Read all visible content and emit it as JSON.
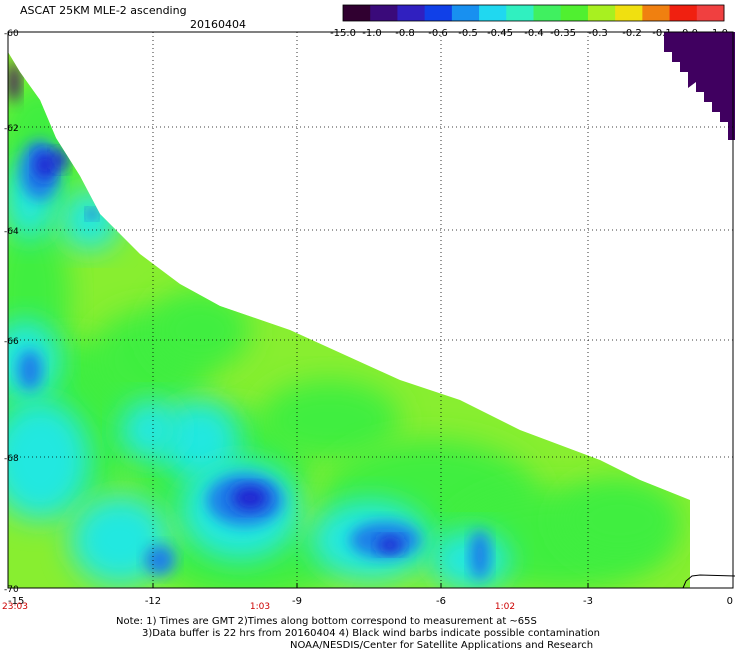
{
  "title": "ASCAT 25KM MLE-2 ascending",
  "date": "20160404",
  "colorbar": {
    "labels": [
      "-15.0",
      "-1.0",
      "-0.8",
      "-0.6",
      "-0.5",
      "-0.45",
      "-0.4",
      "-0.35",
      "-0.3",
      "-0.2",
      "-0.1",
      "0.0",
      "1.0"
    ],
    "colors": [
      "#300030",
      "#3a0a7a",
      "#3020c0",
      "#1040e8",
      "#1890f0",
      "#20d8f0",
      "#30f0c0",
      "#40f060",
      "#50f030",
      "#a8f020",
      "#f0e010",
      "#f08010",
      "#f02010",
      "#f04040"
    ]
  },
  "map": {
    "lat_labels": [
      "-60",
      "-62",
      "-64",
      "-66",
      "-68",
      "-70"
    ],
    "lon_labels": [
      "-15",
      "-12",
      "-9",
      "-6",
      "-3",
      "0"
    ],
    "time_labels": [
      "23:03",
      "1:03",
      "1:02"
    ],
    "time_color": "#cc0000",
    "field_colors": {
      "main": "#88ee30",
      "green": "#40ee40",
      "cyan": "#20e8e0",
      "blue": "#1a7fe8",
      "deep_blue": "#2020d0",
      "purple": "#400060"
    }
  },
  "notes": [
    "Note: 1) Times are GMT 2)Times along bottom correspond to measurement at ~65S",
    "3)Data buffer is 22 hrs from 20160404 4) Black wind barbs indicate possible contamination",
    "NOAA/NESDIS/Center for Satellite Applications and Research"
  ]
}
